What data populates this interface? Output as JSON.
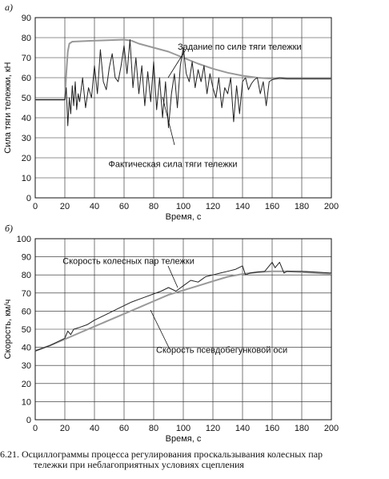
{
  "caption": {
    "line1": "6.21. Осциллограммы процесса регулирования проскальзывания колесных пар",
    "line2": "тележки при неблагоприятных условиях сцепления"
  },
  "chart_data": [
    {
      "panel_label": "а)",
      "type": "line",
      "xlabel": "Время, с",
      "ylabel": "Сила тяги тележки, кН",
      "xlim": [
        0,
        200
      ],
      "ylim": [
        0,
        90
      ],
      "xticks": [
        0,
        20,
        40,
        60,
        80,
        100,
        120,
        140,
        160,
        180,
        200
      ],
      "yticks": [
        0,
        10,
        20,
        30,
        40,
        50,
        60,
        70,
        80,
        90
      ],
      "grid": true,
      "series": [
        {
          "name": "Задание по силе тяги тележки",
          "color": "#999999",
          "x": [
            0,
            20,
            21,
            22,
            23,
            25,
            40,
            60,
            65,
            70,
            80,
            90,
            100,
            110,
            120,
            130,
            140,
            150,
            160,
            170,
            180,
            190,
            200
          ],
          "y": [
            49,
            49,
            62,
            73,
            77,
            78,
            78.5,
            79,
            78.5,
            77,
            75,
            73,
            70,
            67,
            64.5,
            62.5,
            61,
            60,
            59.5,
            59.5,
            59.5,
            59.5,
            59.5
          ]
        },
        {
          "name": "Фактическая сила тяги тележки",
          "color": "#222222",
          "x": [
            0,
            20,
            21,
            22,
            23,
            24,
            25,
            26,
            27,
            28,
            29,
            30,
            32,
            34,
            36,
            38,
            40,
            42,
            44,
            46,
            48,
            50,
            52,
            54,
            56,
            58,
            60,
            62,
            64,
            66,
            68,
            70,
            72,
            74,
            76,
            78,
            80,
            82,
            84,
            86,
            88,
            90,
            92,
            94,
            96,
            98,
            100,
            102,
            104,
            106,
            108,
            110,
            112,
            114,
            116,
            118,
            120,
            122,
            124,
            126,
            128,
            130,
            132,
            134,
            136,
            138,
            140,
            142,
            144,
            146,
            148,
            150,
            152,
            154,
            156,
            158,
            160,
            165,
            170,
            180,
            190,
            200
          ],
          "y": [
            49,
            49,
            55,
            36,
            50,
            42,
            56,
            46,
            58,
            44,
            52,
            48,
            60,
            45,
            55,
            50,
            66,
            52,
            74,
            58,
            54,
            65,
            72,
            60,
            58,
            66,
            76,
            62,
            79,
            55,
            70,
            52,
            66,
            46,
            63,
            48,
            68,
            44,
            60,
            40,
            58,
            35,
            52,
            62,
            45,
            66,
            75,
            62,
            58,
            68,
            55,
            64,
            58,
            66,
            52,
            62,
            55,
            50,
            60,
            45,
            55,
            52,
            60,
            38,
            56,
            42,
            58,
            60,
            54,
            57,
            59,
            60,
            52,
            58,
            46,
            58,
            59,
            60,
            59.5,
            59.5,
            59.5,
            59.5
          ]
        }
      ],
      "annotations": [
        {
          "text": "Задание по силе тяги тележки",
          "x": 138,
          "y": 74
        },
        {
          "text": "Фактическая сила тяги тележки",
          "x": 93,
          "y": 15.5
        }
      ]
    },
    {
      "panel_label": "б)",
      "type": "line",
      "xlabel": "Время, с",
      "ylabel": "Скорость, км/ч",
      "xlim": [
        0,
        200
      ],
      "ylim": [
        0,
        100
      ],
      "xticks": [
        0,
        20,
        40,
        60,
        80,
        100,
        120,
        140,
        160,
        180,
        200
      ],
      "yticks": [
        0,
        10,
        20,
        30,
        40,
        50,
        60,
        70,
        80,
        90,
        100
      ],
      "grid": true,
      "series": [
        {
          "name": "Скорость колесных пар тележки",
          "color": "#222222",
          "x": [
            0,
            10,
            20,
            22,
            24,
            26,
            30,
            35,
            40,
            45,
            50,
            55,
            60,
            65,
            70,
            75,
            80,
            85,
            90,
            95,
            100,
            105,
            110,
            115,
            120,
            125,
            130,
            135,
            140,
            142,
            145,
            150,
            155,
            160,
            162,
            165,
            168,
            170,
            180,
            190,
            200
          ],
          "y": [
            38,
            41,
            45,
            49,
            47,
            50,
            51,
            52.5,
            55,
            57,
            59,
            61,
            63,
            65,
            66.5,
            68,
            69.5,
            71,
            73,
            71,
            74,
            77,
            76,
            79,
            80,
            81,
            82,
            83,
            85,
            80,
            81,
            81.5,
            82,
            87,
            84,
            87,
            81,
            82,
            82,
            81.5,
            81
          ]
        },
        {
          "name": "Скорость псевдобегунковой оси",
          "color": "#999999",
          "x": [
            0,
            10,
            20,
            30,
            40,
            50,
            60,
            70,
            80,
            90,
            100,
            110,
            120,
            130,
            140,
            150,
            160,
            170,
            180,
            190,
            200
          ],
          "y": [
            38,
            41,
            44.5,
            48,
            51.5,
            55,
            58.5,
            62,
            65.5,
            69,
            71.5,
            74,
            76.5,
            79,
            80.5,
            81.5,
            82,
            82,
            81.5,
            81,
            80.5
          ]
        }
      ],
      "annotations": [
        {
          "text": "Скорость колесных пар тележки",
          "x": 63,
          "y": 86
        },
        {
          "text": "Скорость псевдобегунковой оси",
          "x": 126,
          "y": 37
        }
      ]
    }
  ]
}
